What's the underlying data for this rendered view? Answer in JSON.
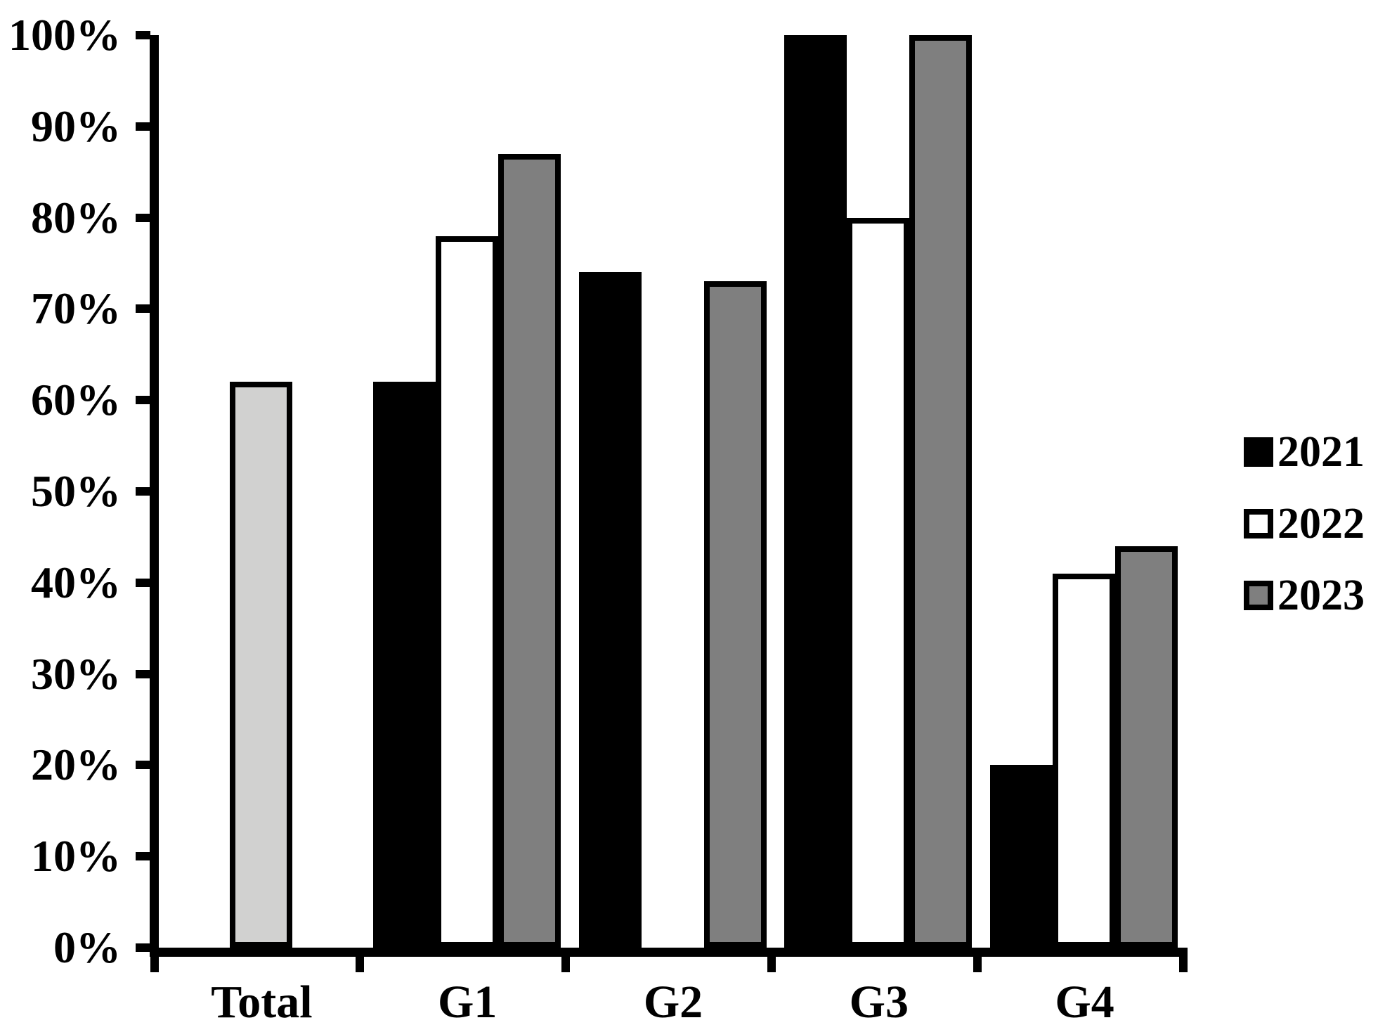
{
  "chart_data": {
    "type": "bar",
    "title": "",
    "xlabel": "",
    "ylabel": "",
    "categories": [
      "Total",
      "G1",
      "G2",
      "G3",
      "G4"
    ],
    "series": [
      {
        "name": "2021",
        "fill": "#000000",
        "values": [
          null,
          62,
          74,
          100,
          20
        ]
      },
      {
        "name": "2022",
        "fill": "#ffffff",
        "values": [
          null,
          78,
          null,
          80,
          41
        ]
      },
      {
        "name": "2023",
        "fill": "#7f7f7f",
        "values": [
          null,
          87,
          73,
          100,
          44
        ]
      }
    ],
    "total_bar": {
      "category": "Total",
      "slot": 1,
      "value": 62,
      "fill": "#d1d1d0"
    },
    "y_ticks": [
      "0%",
      "10%",
      "20%",
      "30%",
      "40%",
      "50%",
      "60%",
      "70%",
      "80%",
      "90%",
      "100%"
    ],
    "ylim": [
      0,
      100
    ],
    "grid": false,
    "bar_outline": "#000000",
    "axis_color": "#000000",
    "legend_position": "right",
    "legend": [
      {
        "label": "2021",
        "fill": "#000000"
      },
      {
        "label": "2022",
        "fill": "#ffffff"
      },
      {
        "label": "2023",
        "fill": "#7f7f7f"
      }
    ]
  }
}
